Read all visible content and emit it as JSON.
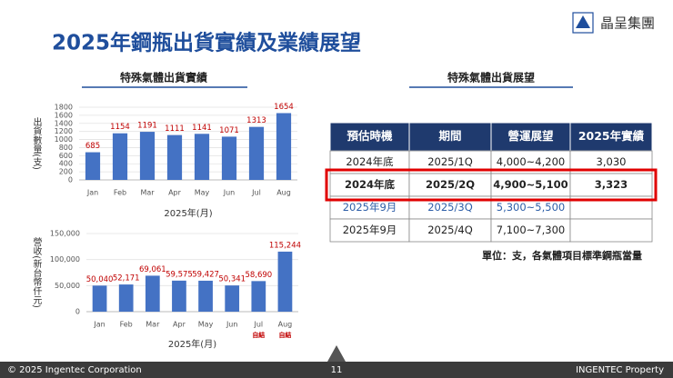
{
  "header": {
    "title": "2025年鋼瓶出貨實績及業績展望",
    "logo": "晶呈集團"
  },
  "chart_data": [
    {
      "type": "bar",
      "title": "特殊氣體出貨實績",
      "y_label": "出貨數量(支)",
      "x_label": "2025年(月)",
      "categories": [
        "Jan",
        "Feb",
        "Mar",
        "Apr",
        "May",
        "Jun",
        "Jul",
        "Aug"
      ],
      "values": [
        685,
        1154,
        1191,
        1111,
        1141,
        1071,
        1313,
        1654
      ],
      "color": "#4472c4",
      "ylim": [
        0,
        1800
      ],
      "yticks": [
        0,
        200,
        400,
        600,
        800,
        1000,
        1200,
        1400,
        1600,
        1800
      ],
      "grid": true
    },
    {
      "type": "bar",
      "y_label": "營收(新台幣仟元)",
      "x_label": "2025年(月)",
      "categories": [
        "Jan",
        "Feb",
        "Mar",
        "Apr",
        "May",
        "Jun",
        "Jul",
        "Aug"
      ],
      "values": [
        50040,
        52171,
        69061,
        59575,
        59427,
        50341,
        58690,
        115244
      ],
      "value_labels": [
        "50,040",
        "52,171",
        "69,061",
        "59,575",
        "59,427",
        "50,341",
        "58,690",
        "115,244"
      ],
      "category_notes": [
        null,
        null,
        null,
        null,
        null,
        null,
        "自結",
        "自結"
      ],
      "color": "#4472c4",
      "ylim": [
        0,
        150000
      ],
      "yticks": [
        0,
        {
          "value": 50000,
          "label": "50,000"
        },
        {
          "value": 100000,
          "label": "100,000"
        },
        {
          "value": 150000,
          "label": "150,000"
        }
      ],
      "grid": true
    }
  ],
  "table": {
    "title": "特殊氣體出貨展望",
    "headers": [
      "預估時機",
      "期間",
      "營運展望",
      "2025年實績"
    ],
    "rows": [
      [
        "2024年底",
        "2025/1Q",
        "4,000~4,200",
        "3,030"
      ],
      [
        "2024年底",
        "2025/2Q",
        "4,900~5,100",
        "3,323"
      ],
      [
        "2025年9月",
        "2025/3Q",
        "5,300~5,500",
        null
      ],
      [
        "2025年9月",
        "2025/4Q",
        "7,100~7,300",
        null
      ]
    ],
    "note": "單位：支，各氣體項目標準鋼瓶當量"
  },
  "footer": {
    "left": "© 2025 Ingentec Corporation",
    "page": "11",
    "right": "INGENTEC Property"
  }
}
